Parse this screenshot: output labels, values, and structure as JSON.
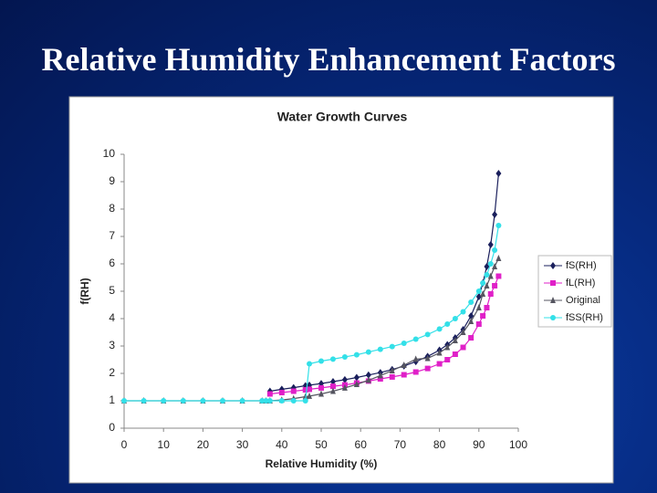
{
  "slide_title": "Relative Humidity Enhancement Factors",
  "chart_data": {
    "type": "line",
    "title": "Water Growth Curves",
    "x_label": "Relative Humidity (%)",
    "y_label": "f(RH)",
    "x": [
      0,
      5,
      10,
      15,
      20,
      25,
      30,
      35,
      36,
      37,
      40,
      43,
      46,
      47,
      50,
      53,
      56,
      59,
      62,
      65,
      68,
      71,
      74,
      77,
      80,
      82,
      84,
      86,
      88,
      90,
      91,
      92,
      93,
      94,
      95
    ],
    "series": [
      {
        "name": "fS(RH)",
        "color": "#1a1f5c",
        "marker": "diamond",
        "values": [
          null,
          null,
          null,
          null,
          null,
          null,
          null,
          null,
          null,
          1.35,
          1.42,
          1.48,
          1.55,
          1.57,
          1.63,
          1.7,
          1.77,
          1.85,
          1.94,
          2.03,
          2.14,
          2.27,
          2.43,
          2.62,
          2.85,
          3.05,
          3.3,
          3.6,
          4.1,
          4.8,
          5.3,
          5.9,
          6.7,
          7.8,
          9.3
        ]
      },
      {
        "name": "fL(RH)",
        "color": "#e020c8",
        "marker": "square",
        "values": [
          null,
          null,
          null,
          null,
          null,
          null,
          null,
          null,
          null,
          1.25,
          1.3,
          1.35,
          1.4,
          1.42,
          1.47,
          1.53,
          1.58,
          1.65,
          1.72,
          1.8,
          1.87,
          1.95,
          2.05,
          2.18,
          2.35,
          2.5,
          2.7,
          2.95,
          3.3,
          3.8,
          4.1,
          4.4,
          4.9,
          5.2,
          5.55
        ]
      },
      {
        "name": "Original",
        "color": "#555560",
        "marker": "triangle",
        "values": [
          1,
          1,
          1,
          1,
          1,
          1,
          1,
          1,
          1,
          1.0,
          1.03,
          1.08,
          1.15,
          1.17,
          1.25,
          1.35,
          1.47,
          1.6,
          1.75,
          1.92,
          2.1,
          2.3,
          2.52,
          2.55,
          2.75,
          2.95,
          3.2,
          3.5,
          3.9,
          4.4,
          4.9,
          5.2,
          5.55,
          5.9,
          6.2
        ]
      },
      {
        "name": "fSS(RH)",
        "color": "#33e0e8",
        "marker": "circle",
        "values": [
          1,
          1,
          1,
          1,
          1,
          1,
          1,
          1,
          1,
          1,
          1,
          1,
          1,
          2.35,
          2.45,
          2.52,
          2.6,
          2.68,
          2.78,
          2.88,
          2.98,
          3.1,
          3.25,
          3.42,
          3.62,
          3.8,
          4.0,
          4.25,
          4.6,
          5.0,
          5.3,
          5.6,
          6.0,
          6.5,
          7.4
        ]
      }
    ],
    "xlim": [
      0,
      100
    ],
    "xticks": [
      0,
      10,
      20,
      30,
      40,
      50,
      60,
      70,
      80,
      90,
      100
    ],
    "ylim": [
      0,
      10
    ],
    "yticks": [
      0,
      1,
      2,
      3,
      4,
      5,
      6,
      7,
      8,
      9,
      10
    ],
    "grid": false,
    "legend": "right"
  }
}
